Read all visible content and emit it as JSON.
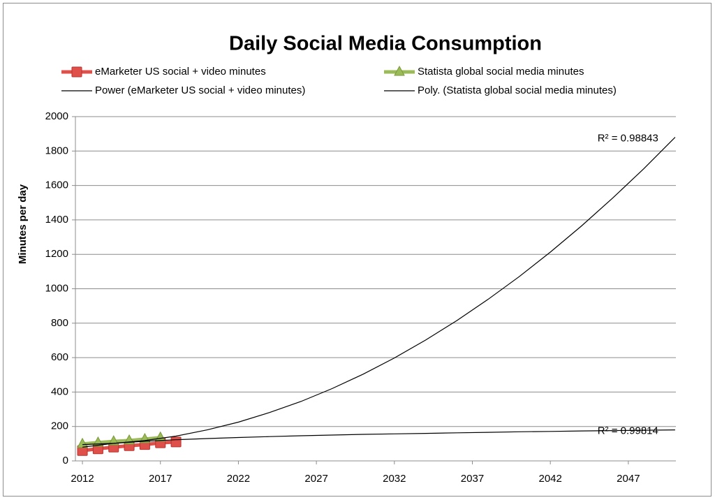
{
  "chart_data": {
    "type": "line",
    "title": "Daily Social Media Consumption",
    "y_label": "Minutes per day",
    "xlim": [
      2011.55,
      2050.05
    ],
    "ylim": [
      0,
      2000
    ],
    "xticks": [
      2012,
      2017,
      2022,
      2027,
      2032,
      2037,
      2042,
      2047
    ],
    "yticks": [
      0,
      200,
      400,
      600,
      800,
      1000,
      1200,
      1400,
      1600,
      1800,
      2000
    ],
    "grid": true,
    "series": [
      {
        "name": "eMarketer US social + video minutes",
        "color": "#e0504a",
        "marker": "square",
        "x": [
          2012,
          2013,
          2014,
          2015,
          2016,
          2017,
          2018
        ],
        "values": [
          60,
          70,
          80,
          88,
          95,
          105,
          110
        ]
      },
      {
        "name": "Statista global social media minutes",
        "color": "#9bbb59",
        "marker": "triangle",
        "x": [
          2012,
          2013,
          2014,
          2015,
          2016,
          2017
        ],
        "values": [
          98,
          106,
          113,
          118,
          126,
          135
        ]
      },
      {
        "name": "Power (eMarketer US social + video minutes)",
        "color": "#000000",
        "marker": "none",
        "annotation": "R² = 0.99814",
        "x": [
          2012,
          2014,
          2016,
          2018,
          2020,
          2022,
          2024,
          2026,
          2028,
          2030,
          2032,
          2034,
          2036,
          2038,
          2040,
          2042,
          2044,
          2046,
          2048,
          2050
        ],
        "values": [
          80,
          102,
          114,
          123,
          130,
          136,
          141,
          146,
          150,
          154,
          157,
          160,
          163,
          166,
          169,
          171,
          174,
          176,
          178,
          180
        ]
      },
      {
        "name": "Poly. (Statista global social media minutes)",
        "color": "#000000",
        "marker": "none",
        "annotation": "R² = 0.98843",
        "x": [
          2012,
          2014,
          2016,
          2018,
          2020,
          2022,
          2024,
          2026,
          2028,
          2030,
          2032,
          2034,
          2036,
          2038,
          2040,
          2042,
          2044,
          2046,
          2048,
          2050
        ],
        "values": [
          95,
          101.7,
          118,
          144,
          180,
          225,
          281,
          345,
          420,
          504,
          598,
          702,
          815,
          938,
          1070,
          1213,
          1365,
          1527,
          1698,
          1880
        ]
      }
    ]
  }
}
